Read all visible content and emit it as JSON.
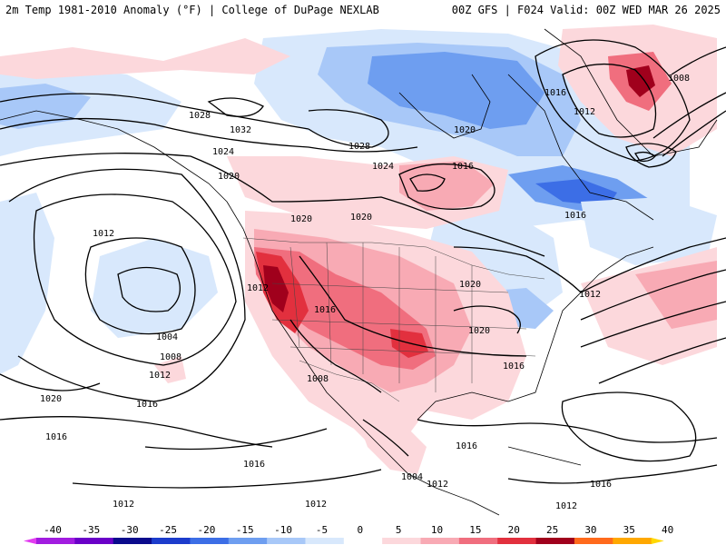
{
  "header": {
    "left_title": "2m Temp 1981-2010 Anomaly (°F) | College of DuPage NEXLAB",
    "right_title": "00Z GFS | F024 Valid: 00Z WED MAR 26 2025"
  },
  "legend": {
    "ticks": [
      "-40",
      "-35",
      "-30",
      "-25",
      "-20",
      "-15",
      "-10",
      "-5",
      "0",
      "5",
      "10",
      "15",
      "20",
      "25",
      "30",
      "35",
      "40"
    ],
    "colors": [
      "#e23cf0",
      "#a21ce0",
      "#6a00c8",
      "#0a0a8c",
      "#1c3ccc",
      "#3c6ee6",
      "#6e9ef0",
      "#a8c8f8",
      "#d8e8fc",
      "#ffffff",
      "#fcd8dc",
      "#f8aab4",
      "#f06e7e",
      "#e2303e",
      "#a0001c",
      "#ff6a1c",
      "#ffa800",
      "#ffd800"
    ]
  },
  "isobars": {
    "labels": [
      "1032",
      "1028",
      "1028",
      "1024",
      "1024",
      "1020",
      "1020",
      "1020",
      "1020",
      "1020",
      "1020",
      "1016",
      "1016",
      "1016",
      "1016",
      "1016",
      "1016",
      "1016",
      "1016",
      "1016",
      "1012",
      "1012",
      "1012",
      "1012",
      "1012",
      "1012",
      "1012",
      "1012",
      "1012",
      "1008",
      "1008",
      "1008",
      "1004",
      "1004",
      "1020"
    ],
    "colors": {
      "line": "#000000",
      "coast": "#000000",
      "border": "#444444"
    }
  }
}
